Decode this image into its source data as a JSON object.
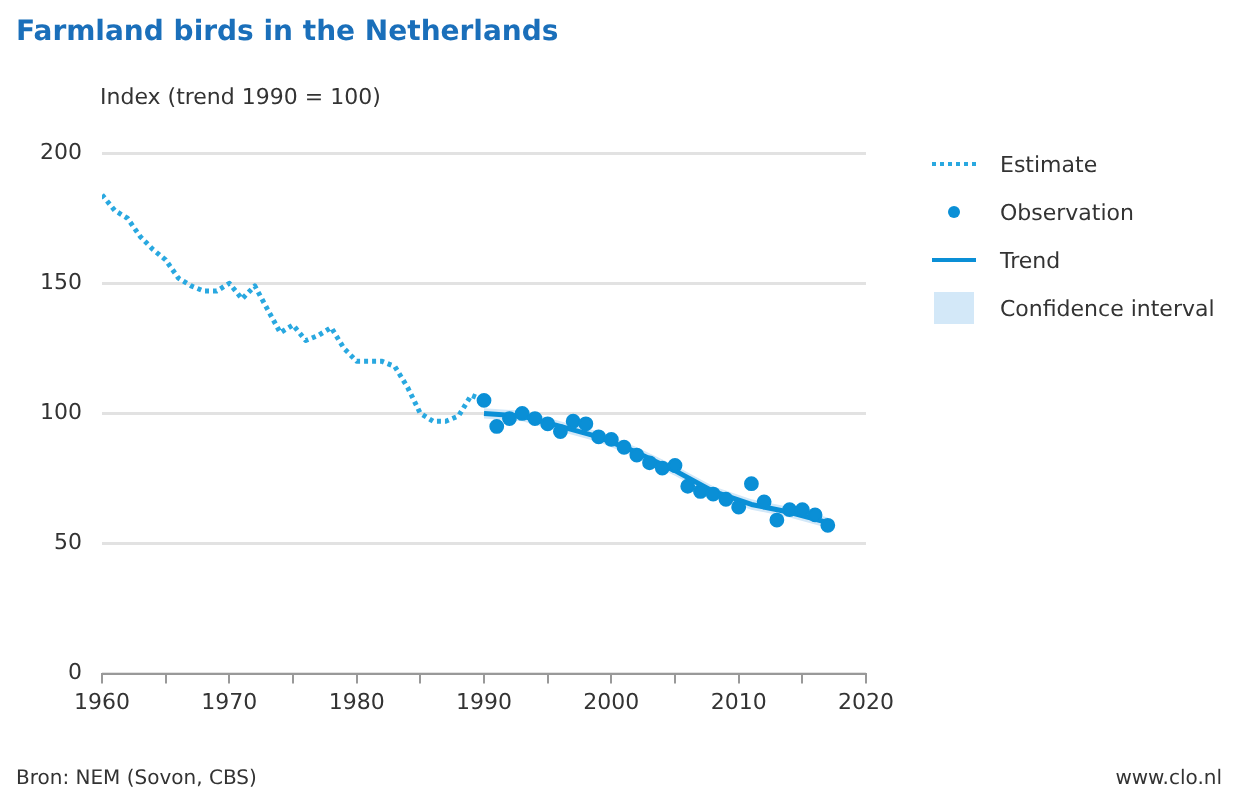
{
  "chart_data": {
    "type": "line",
    "title": "Farmland birds in the Netherlands",
    "ylabel": "Index (trend 1990 = 100)",
    "xlim": [
      1960,
      2020
    ],
    "xticks": [
      1960,
      {
        "value": 1965,
        "label": null
      },
      1970,
      {
        "value": 1975,
        "label": null
      },
      1980,
      {
        "value": 1985,
        "label": null
      },
      1990,
      {
        "value": 1995,
        "label": null
      },
      2000,
      {
        "value": 2005,
        "label": null
      },
      2010,
      {
        "value": 2015,
        "label": null
      },
      2020
    ],
    "ylim": [
      0,
      200
    ],
    "yticks": [
      0,
      50,
      100,
      150,
      200
    ],
    "grid": "y",
    "legend": "right",
    "annotations": [
      "Bron: NEM (Sovon, CBS)",
      "www.clo.nl",
      "Confidence interval"
    ],
    "series": [
      {
        "name": "Estimate",
        "type": "line",
        "line_style": "dotted",
        "color": "#29a8e0",
        "x": [
          1960,
          1961,
          1962,
          1963,
          1964,
          1965,
          1966,
          1967,
          1968,
          1969,
          1970,
          1971,
          1972,
          1973,
          1974,
          1975,
          1976,
          1977,
          1978,
          1979,
          1980,
          1981,
          1982,
          1983,
          1984,
          1985,
          1986,
          1987,
          1988,
          1989,
          1990
        ],
        "values": [
          184,
          178,
          175,
          168,
          163,
          159,
          152,
          149,
          147,
          147,
          150,
          144,
          149,
          140,
          131,
          134,
          128,
          130,
          133,
          125,
          120,
          120,
          120,
          118,
          110,
          100,
          97,
          97,
          99,
          107,
          105
        ]
      },
      {
        "name": "Observation",
        "type": "scatter",
        "marker": "circle",
        "color": "#0a8fd6",
        "x": [
          1990,
          1991,
          1992,
          1993,
          1994,
          1995,
          1996,
          1997,
          1998,
          1999,
          2000,
          2001,
          2002,
          2003,
          2004,
          2005,
          2006,
          2007,
          2008,
          2009,
          2010,
          2011,
          2012,
          2013,
          2014,
          2015,
          2016,
          2017
        ],
        "values": [
          105,
          95,
          98,
          100,
          98,
          96,
          93,
          97,
          96,
          91,
          90,
          87,
          84,
          81,
          79,
          80,
          72,
          70,
          69,
          67,
          64,
          73,
          66,
          59,
          63,
          63,
          61,
          57
        ]
      },
      {
        "name": "Trend",
        "type": "line",
        "line_style": "solid",
        "color": "#0a8fd6",
        "x": [
          1990,
          1993,
          1996,
          1999,
          2002,
          2005,
          2008,
          2011,
          2014,
          2017
        ],
        "values": [
          100,
          99,
          95,
          91,
          85,
          78,
          70,
          65,
          62,
          58
        ],
        "lower": [
          98,
          97,
          93,
          89,
          83,
          76,
          68,
          63,
          60,
          56
        ],
        "upper": [
          102,
          101,
          97,
          93,
          87,
          80,
          72,
          67,
          64,
          60
        ]
      }
    ]
  }
}
